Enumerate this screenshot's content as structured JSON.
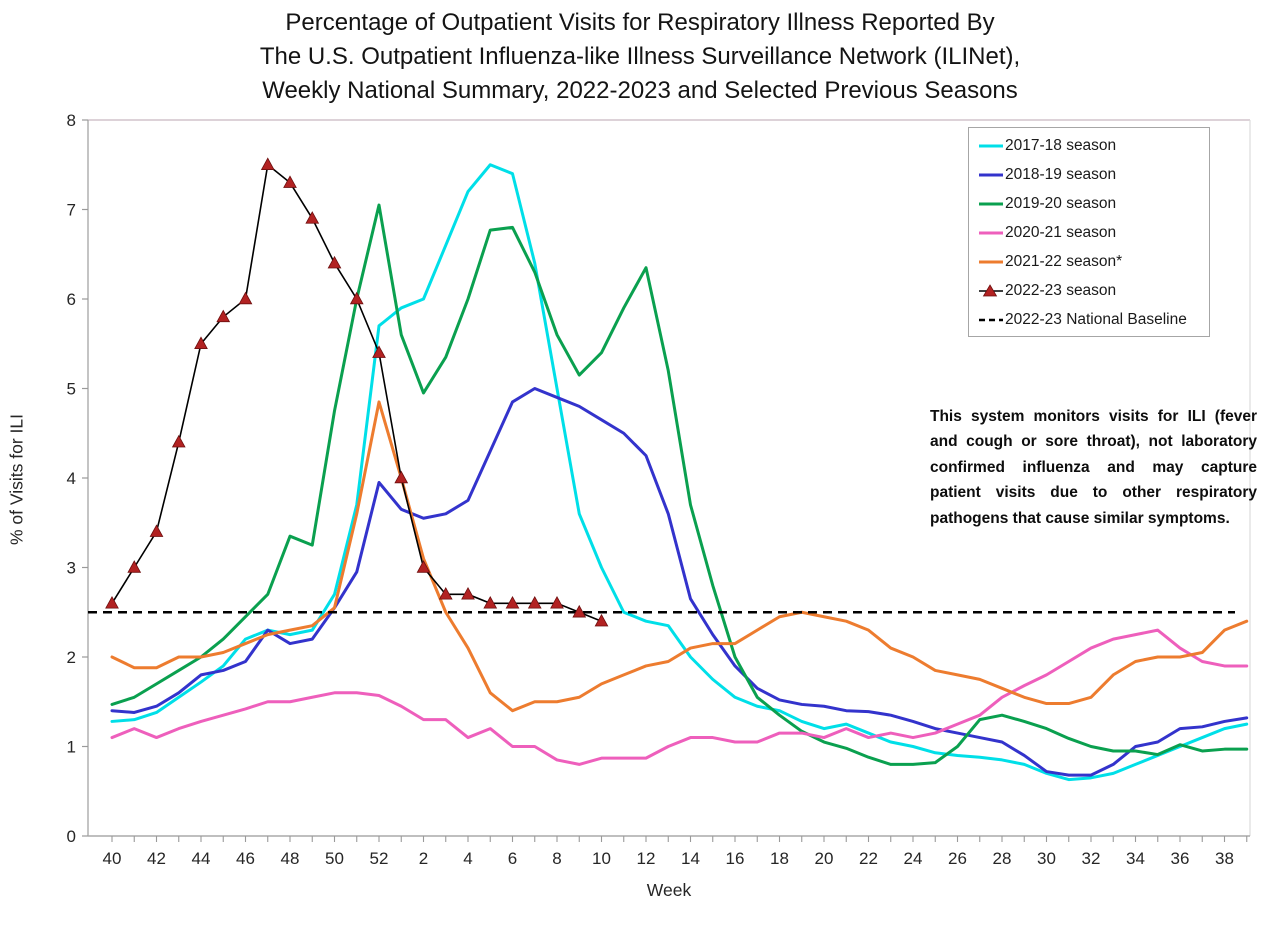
{
  "title": {
    "line1": "Percentage of Outpatient Visits for Respiratory Illness Reported By",
    "line2": "The U.S. Outpatient Influenza-like Illness Surveillance Network (ILINet),",
    "line3": "Weekly National Summary, 2022-2023 and Selected Previous Seasons"
  },
  "y_axis": {
    "label": "% of Visits for ILI",
    "ticks": [
      0,
      1,
      2,
      3,
      4,
      5,
      6,
      7,
      8
    ],
    "min": 0,
    "max": 8
  },
  "x_axis": {
    "label": "Week",
    "tick_labels": [
      "40",
      "42",
      "44",
      "46",
      "48",
      "50",
      "52",
      "2",
      "4",
      "6",
      "8",
      "10",
      "12",
      "14",
      "16",
      "18",
      "20",
      "22",
      "24",
      "26",
      "28",
      "30",
      "32",
      "34",
      "36",
      "38"
    ]
  },
  "legend": [
    {
      "label": "2017-18 season",
      "swatch": "line",
      "color": "#00dfe8"
    },
    {
      "label": "2018-19 season",
      "swatch": "line",
      "color": "#3333cc"
    },
    {
      "label": "2019-20 season",
      "swatch": "line",
      "color": "#0aa04f"
    },
    {
      "label": "2020-21 season",
      "swatch": "line",
      "color": "#ee5fbc"
    },
    {
      "label": "2021-22 season*",
      "swatch": "line",
      "color": "#ed7c2f"
    },
    {
      "label": "2022-23 season",
      "swatch": "triangle-line",
      "color": "#000000",
      "marker_color": "#b22222"
    },
    {
      "label": "2022-23 National Baseline",
      "swatch": "dashed",
      "color": "#000000"
    }
  ],
  "annotation": {
    "text": "This system monitors visits for ILI (fever and cough or sore throat), not laboratory confirmed influenza and may capture patient visits due to other respiratory pathogens that cause similar symptoms."
  },
  "chart_data": {
    "type": "line",
    "title": "Percentage of Outpatient Visits for Respiratory Illness Reported By The U.S. Outpatient Influenza-like Illness Surveillance Network (ILINet), Weekly National Summary, 2022-2023 and Selected Previous Seasons",
    "xlabel": "Week",
    "ylabel": "% of Visits for ILI",
    "ylim": [
      0,
      8
    ],
    "grid": false,
    "legend_position": "top-right",
    "weeks": [
      40,
      41,
      42,
      43,
      44,
      45,
      46,
      47,
      48,
      49,
      50,
      51,
      52,
      1,
      2,
      3,
      4,
      5,
      6,
      7,
      8,
      9,
      10,
      11,
      12,
      13,
      14,
      15,
      16,
      17,
      18,
      19,
      20,
      21,
      22,
      23,
      24,
      25,
      26,
      27,
      28,
      29,
      30,
      31,
      32,
      33,
      34,
      35,
      36,
      37,
      38,
      39
    ],
    "series": [
      {
        "name": "2017-18 season",
        "color": "#00dfe8",
        "line_width": 3,
        "values": [
          1.28,
          1.3,
          1.38,
          1.55,
          1.72,
          1.9,
          2.2,
          2.3,
          2.25,
          2.3,
          2.7,
          3.7,
          5.7,
          5.9,
          6.0,
          6.6,
          7.2,
          7.5,
          7.4,
          6.4,
          5.0,
          3.6,
          3.0,
          2.5,
          2.4,
          2.35,
          2.0,
          1.75,
          1.55,
          1.45,
          1.4,
          1.28,
          1.2,
          1.25,
          1.15,
          1.05,
          1.0,
          0.93,
          0.9,
          0.88,
          0.85,
          0.8,
          0.7,
          0.63,
          0.65,
          0.7,
          0.8,
          0.9,
          1.0,
          1.1,
          1.2,
          1.25
        ]
      },
      {
        "name": "2018-19 season",
        "color": "#3333cc",
        "line_width": 3,
        "values": [
          1.4,
          1.38,
          1.45,
          1.6,
          1.8,
          1.85,
          1.95,
          2.3,
          2.15,
          2.2,
          2.55,
          2.95,
          3.95,
          3.65,
          3.55,
          3.6,
          3.75,
          4.3,
          4.85,
          5.0,
          4.9,
          4.8,
          4.65,
          4.5,
          4.25,
          3.6,
          2.65,
          2.25,
          1.9,
          1.65,
          1.52,
          1.47,
          1.45,
          1.4,
          1.39,
          1.35,
          1.28,
          1.2,
          1.15,
          1.1,
          1.05,
          0.9,
          0.72,
          0.68,
          0.68,
          0.8,
          1.0,
          1.05,
          1.2,
          1.22,
          1.28,
          1.32
        ]
      },
      {
        "name": "2019-20 season",
        "color": "#0aa04f",
        "line_width": 3,
        "values": [
          1.47,
          1.55,
          1.7,
          1.85,
          2.0,
          2.2,
          2.45,
          2.7,
          3.35,
          3.25,
          4.75,
          6.0,
          7.05,
          5.6,
          4.95,
          5.35,
          6.0,
          6.77,
          6.8,
          6.3,
          5.6,
          5.15,
          5.4,
          5.9,
          6.35,
          5.2,
          3.7,
          2.8,
          2.0,
          1.55,
          1.35,
          1.17,
          1.05,
          0.98,
          0.88,
          0.8,
          0.8,
          0.82,
          1.0,
          1.3,
          1.35,
          1.28,
          1.2,
          1.09,
          1.0,
          0.95,
          0.95,
          0.91,
          1.02,
          0.95,
          0.97,
          0.97
        ]
      },
      {
        "name": "2020-21 season",
        "color": "#ee5fbc",
        "line_width": 3,
        "values": [
          1.1,
          1.2,
          1.1,
          1.2,
          1.28,
          1.35,
          1.42,
          1.5,
          1.5,
          1.55,
          1.6,
          1.6,
          1.57,
          1.45,
          1.3,
          1.3,
          1.1,
          1.2,
          1.0,
          1.0,
          0.85,
          0.8,
          0.87,
          0.87,
          0.87,
          1.0,
          1.1,
          1.1,
          1.05,
          1.05,
          1.15,
          1.15,
          1.1,
          1.2,
          1.1,
          1.15,
          1.1,
          1.15,
          1.25,
          1.35,
          1.55,
          1.68,
          1.8,
          1.95,
          2.1,
          2.2,
          2.25,
          2.3,
          2.1,
          1.95,
          1.9,
          1.9
        ]
      },
      {
        "name": "2021-22 season*",
        "color": "#ed7c2f",
        "line_width": 3,
        "values": [
          2.0,
          1.88,
          1.88,
          2.0,
          2.0,
          2.05,
          2.15,
          2.25,
          2.3,
          2.35,
          2.55,
          3.6,
          4.85,
          4.0,
          3.1,
          2.5,
          2.1,
          1.6,
          1.4,
          1.5,
          1.5,
          1.55,
          1.7,
          1.8,
          1.9,
          1.95,
          2.1,
          2.15,
          2.15,
          2.3,
          2.45,
          2.5,
          2.45,
          2.4,
          2.3,
          2.1,
          2.0,
          1.85,
          1.8,
          1.75,
          1.65,
          1.55,
          1.48,
          1.48,
          1.55,
          1.8,
          1.95,
          2.0,
          2.0,
          2.05,
          2.3,
          2.4
        ]
      },
      {
        "name": "2022-23 season",
        "color": "#000000",
        "line_width": 1.6,
        "marker": "triangle",
        "marker_color": "#b22222",
        "values": [
          2.6,
          3.0,
          3.4,
          4.4,
          5.5,
          5.8,
          6.0,
          7.5,
          7.3,
          6.9,
          6.4,
          6.0,
          5.4,
          4.0,
          3.0,
          2.7,
          2.7,
          2.6,
          2.6,
          2.6,
          2.6,
          2.5,
          2.4
        ]
      }
    ],
    "baseline": {
      "label": "2022-23 National Baseline",
      "value": 2.5,
      "color": "#000000",
      "style": "dashed"
    }
  }
}
